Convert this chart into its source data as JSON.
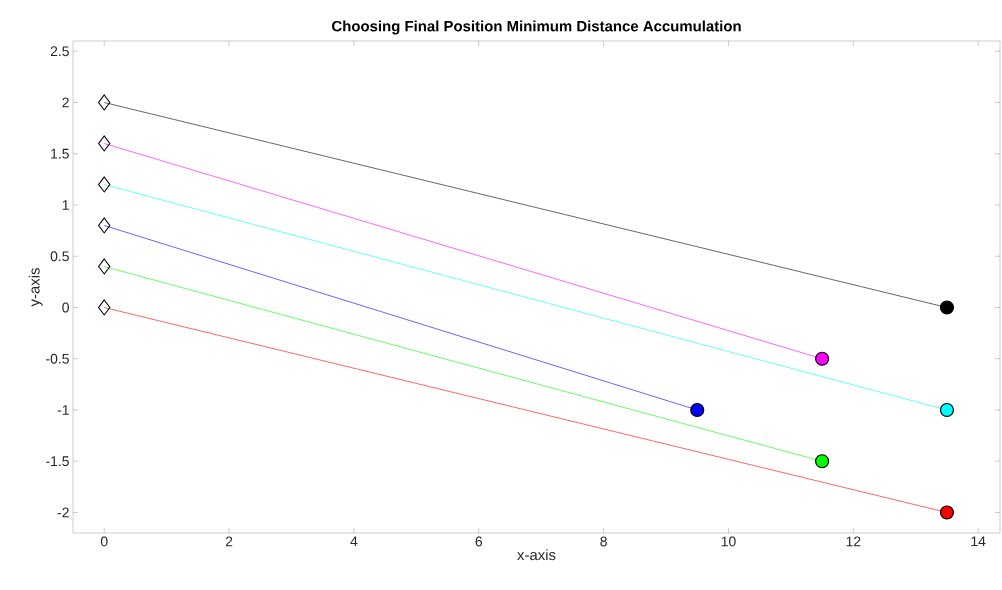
{
  "chart_data": {
    "type": "line",
    "title": "Choosing Final Position Minimum Distance Accumulation",
    "xlabel": "x-axis",
    "ylabel": "y-axis",
    "xlim": [
      -0.5,
      14.35
    ],
    "ylim": [
      -2.2,
      2.6
    ],
    "xticks": [
      0,
      2,
      4,
      6,
      8,
      10,
      12,
      14
    ],
    "yticks": [
      -2,
      -1.5,
      -1,
      -0.5,
      0,
      0.5,
      1,
      1.5,
      2,
      2.5
    ],
    "line_style": "solid",
    "series": [
      {
        "color": "#000000",
        "x": [
          0,
          13.5
        ],
        "values": [
          2,
          0
        ],
        "marker": "none"
      },
      {
        "color": "#ff00ff",
        "x": [
          0,
          11.5
        ],
        "values": [
          1.6,
          -0.5
        ],
        "marker": "none"
      },
      {
        "color": "#00ffff",
        "x": [
          0,
          13.5
        ],
        "values": [
          1.2,
          -1
        ],
        "marker": "none"
      },
      {
        "color": "#0000ff",
        "x": [
          0,
          9.5
        ],
        "values": [
          0.8,
          -1
        ],
        "marker": "none"
      },
      {
        "color": "#00ff00",
        "x": [
          0,
          11.5
        ],
        "values": [
          0.4,
          -1.5
        ],
        "marker": "none"
      },
      {
        "color": "#ff0000",
        "x": [
          0,
          13.5
        ],
        "values": [
          0,
          -2
        ],
        "marker": "none"
      },
      {
        "type": "scatter",
        "marker": "diamond",
        "color": "#000000",
        "x": [
          0,
          0,
          0,
          0,
          0,
          0
        ],
        "values": [
          2,
          1.6,
          1.2,
          0.8,
          0.4,
          0
        ]
      },
      {
        "type": "scatter",
        "marker": "circle",
        "color": "#000000",
        "colors": [
          "#000000",
          "#ff00ff",
          "#00ffff",
          "#0000ff",
          "#00ff00",
          "#ff0000"
        ],
        "x": [
          13.5,
          11.5,
          13.5,
          9.5,
          11.5,
          13.5
        ],
        "values": [
          0,
          -0.5,
          -1,
          -1,
          -1.5,
          -2
        ]
      }
    ]
  }
}
